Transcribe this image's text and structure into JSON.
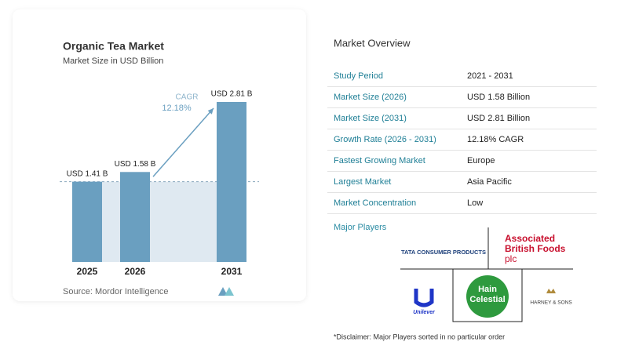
{
  "chart_data": {
    "type": "bar",
    "title": "Organic Tea Market",
    "subtitle": "Market Size in USD Billion",
    "categories": [
      "2025",
      "2026",
      "2031"
    ],
    "values": [
      1.41,
      1.58,
      2.81
    ],
    "value_labels": [
      "USD 1.41 B",
      "USD 1.58 B",
      "USD 2.81 B"
    ],
    "color": "#6a9fc0",
    "annotation": {
      "title": "CAGR",
      "value": "12.18%"
    },
    "source": "Source:  Mordor Intelligence"
  },
  "overview": {
    "title": "Market Overview",
    "rows": [
      [
        "Study Period",
        "2021 - 2031"
      ],
      [
        "Market Size (2026)",
        "USD 1.58 Billion"
      ],
      [
        "Market Size (2031)",
        "USD 2.81 Billion"
      ],
      [
        "Growth Rate (2026 - 2031)",
        "12.18% CAGR"
      ],
      [
        "Fastest Growing Market",
        "Europe"
      ],
      [
        "Largest Market",
        "Asia Pacific"
      ],
      [
        "Market Concentration",
        "Low"
      ]
    ]
  },
  "players": {
    "title": "Major Players",
    "logos": [
      "TATA CONSUMER PRODUCTS",
      "Associated",
      "British Foods",
      "plc",
      "Hain",
      "Celestial",
      "Unilever",
      "HARNEY & SONS"
    ]
  },
  "disclaimer": "*Disclaimer: Major Players sorted in no particular order"
}
